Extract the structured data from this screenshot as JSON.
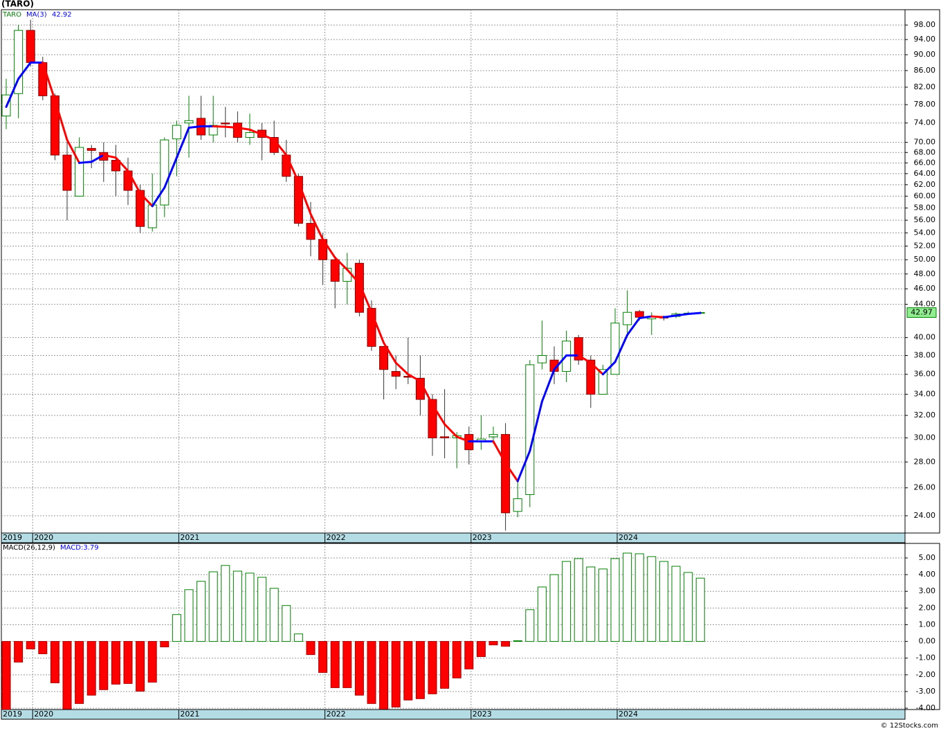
{
  "chart_data": [
    {
      "type": "candlestick",
      "title": "(TARO)",
      "name": "TARO",
      "log_scale": true,
      "grid": true,
      "categories": [
        "2019",
        null,
        "2020",
        null,
        null,
        null,
        null,
        null,
        null,
        null,
        null,
        null,
        null,
        null,
        "2021",
        null,
        null,
        null,
        null,
        null,
        null,
        null,
        null,
        null,
        null,
        null,
        "2022",
        null,
        null,
        null,
        null,
        null,
        null,
        null,
        null,
        null,
        null,
        null,
        "2023",
        null,
        null,
        null,
        null,
        null,
        null,
        null,
        null,
        null,
        null,
        null,
        "2024",
        null,
        null,
        null,
        null,
        null,
        null,
        null
      ],
      "open": [
        75.5,
        80.5,
        96.5,
        88,
        80,
        67.5,
        60,
        68.8,
        68,
        66.5,
        64.5,
        61,
        54.8,
        58.5,
        70.7,
        74,
        75,
        71.5,
        74,
        74,
        71,
        72.5,
        71,
        67.5,
        63.5,
        55.5,
        53,
        50,
        47,
        49.5,
        43.5,
        39,
        36.3,
        35.8,
        35.6,
        33.5,
        30.1,
        30,
        30.3,
        29.7,
        30.1,
        30.3,
        24.3,
        25.5,
        37.2,
        37.5,
        36.3,
        40,
        37.5,
        34,
        36,
        41.5,
        43.1,
        42.2,
        42.5,
        42.5,
        42.8,
        42.9
      ],
      "high": [
        84,
        98,
        99.5,
        89.5,
        80.5,
        70.5,
        71,
        69.5,
        70,
        69.5,
        67,
        62,
        64,
        71,
        74.5,
        80,
        80,
        80,
        77.5,
        76.5,
        76,
        74,
        74.5,
        70.5,
        64,
        59,
        54,
        50.5,
        51,
        50,
        44.5,
        39,
        38,
        40,
        38,
        34,
        34.5,
        30.5,
        31,
        32,
        31,
        31.3,
        26.5,
        37.5,
        42,
        39,
        40.8,
        40.3,
        38,
        37,
        43.5,
        45.8,
        43.3,
        43,
        42.6,
        43,
        43.1,
        43.1
      ],
      "low": [
        72.7,
        75,
        87,
        79,
        66.5,
        56,
        60,
        65,
        62.5,
        60,
        58.5,
        54,
        54.2,
        56.5,
        63.5,
        67,
        70.5,
        70,
        71,
        70,
        69.5,
        66.5,
        67.5,
        62.5,
        55,
        50.5,
        46.5,
        43.5,
        44,
        42.5,
        38.5,
        33.5,
        34.5,
        35,
        32,
        28.5,
        28.3,
        27.5,
        27.8,
        29,
        29.5,
        23,
        23.9,
        24.6,
        36.5,
        35,
        35.2,
        37,
        32.7,
        34,
        36,
        40.5,
        42,
        40.3,
        42,
        42.3,
        42.7,
        42.9
      ],
      "close": [
        80.2,
        96.5,
        88,
        80,
        67.5,
        61,
        69,
        68.4,
        66.5,
        64.5,
        61,
        55,
        58.5,
        70.5,
        73.5,
        74.5,
        71.5,
        73.5,
        73.8,
        71,
        72,
        71,
        68,
        63.5,
        55.5,
        53,
        50,
        47,
        48.8,
        43,
        39,
        36.5,
        35.8,
        35.7,
        33.5,
        30,
        30,
        30.2,
        29,
        29.9,
        30.3,
        24.2,
        25.2,
        37,
        38,
        36.3,
        39.6,
        37.5,
        34,
        36.5,
        41.7,
        43,
        42.4,
        42.5,
        42.3,
        42.8,
        42.9,
        42.97
      ],
      "up_color": "#008000",
      "down_color": "#ff0000",
      "series": [
        {
          "name": "MA(3)",
          "color": "#0000ff",
          "down_color": "#ff0000",
          "values": [
            77.5,
            84,
            88,
            88,
            79,
            70.5,
            66,
            66.2,
            67.5,
            67,
            64.5,
            60.5,
            58.3,
            61.5,
            67,
            73,
            73.3,
            73.3,
            73.2,
            73,
            72.6,
            71.6,
            70.5,
            67.5,
            62.5,
            57,
            53,
            50.3,
            48.6,
            46.7,
            43,
            39.4,
            37.2,
            36,
            35.3,
            33,
            31.2,
            30.1,
            29.7,
            29.7,
            29.7,
            27.9,
            26.5,
            28.9,
            33.3,
            36.5,
            38,
            38,
            37.2,
            36,
            37.3,
            40.3,
            42.3,
            42.5,
            42.4,
            42.6,
            42.8,
            42.92
          ]
        }
      ],
      "ylim": [
        22.84,
        102.4
      ],
      "yticks": [
        {
          "value": 24,
          "label": "24.00"
        },
        {
          "value": 26,
          "label": "26.00"
        },
        {
          "value": 28,
          "label": "28.00"
        },
        {
          "value": 30,
          "label": "30.00"
        },
        {
          "value": 32,
          "label": "32.00"
        },
        {
          "value": 34,
          "label": "34.00"
        },
        {
          "value": 36,
          "label": "36.00"
        },
        {
          "value": 38,
          "label": "38.00"
        },
        {
          "value": 40,
          "label": "40.00"
        },
        {
          "value": 44,
          "label": "44.00"
        },
        {
          "value": 46,
          "label": "46.00"
        },
        {
          "value": 48,
          "label": "48.00"
        },
        {
          "value": 50,
          "label": "50.00"
        },
        {
          "value": 52,
          "label": "52.00"
        },
        {
          "value": 54,
          "label": "54.00"
        },
        {
          "value": 56,
          "label": "56.00"
        },
        {
          "value": 58,
          "label": "58.00"
        },
        {
          "value": 60,
          "label": "60.00"
        },
        {
          "value": 62,
          "label": "62.00"
        },
        {
          "value": 64,
          "label": "64.00"
        },
        {
          "value": 66,
          "label": "66.00"
        },
        {
          "value": 68,
          "label": "68.00"
        },
        {
          "value": 70,
          "label": "70.00"
        },
        {
          "value": 74,
          "label": "74.00"
        },
        {
          "value": 78,
          "label": "78.00"
        },
        {
          "value": 82,
          "label": "82.00"
        },
        {
          "value": 86,
          "label": "86.00"
        },
        {
          "value": 90,
          "label": "90.00"
        },
        {
          "value": 94,
          "label": "94.00"
        },
        {
          "value": 98,
          "label": "98.00"
        }
      ]
    },
    {
      "type": "bar",
      "name": "MACD(26,12,9)",
      "macd_label": "MACD:3.79",
      "grid": true,
      "categories": [
        "2019",
        null,
        "2020",
        null,
        null,
        null,
        null,
        null,
        null,
        null,
        null,
        null,
        null,
        null,
        "2021",
        null,
        null,
        null,
        null,
        null,
        null,
        null,
        null,
        null,
        null,
        null,
        "2022",
        null,
        null,
        null,
        null,
        null,
        null,
        null,
        null,
        null,
        null,
        null,
        "2023",
        null,
        null,
        null,
        null,
        null,
        null,
        null,
        null,
        null,
        null,
        null,
        "2024",
        null,
        null,
        null,
        null,
        null,
        null,
        null
      ],
      "values": [
        -4.5,
        -1.24,
        -0.45,
        -0.74,
        -2.48,
        -4.05,
        -3.72,
        -3.22,
        -2.89,
        -2.56,
        -2.52,
        -2.98,
        -2.44,
        -0.33,
        1.61,
        3.1,
        3.6,
        4.17,
        4.55,
        4.21,
        4.09,
        3.84,
        3.18,
        2.15,
        0.45,
        -0.79,
        -1.86,
        -2.77,
        -2.77,
        -3.22,
        -3.72,
        -4.05,
        -3.93,
        -3.51,
        -3.43,
        -3.14,
        -2.81,
        -2.19,
        -1.65,
        -0.91,
        -0.21,
        -0.29,
        0.04,
        1.9,
        3.26,
        4.0,
        4.79,
        4.96,
        4.46,
        4.34,
        4.96,
        5.29,
        5.25,
        5.08,
        4.79,
        4.5,
        4.13,
        3.79
      ],
      "up_color": "#008000",
      "down_color": "#ff0000",
      "ylim": [
        -4.08,
        5.87
      ],
      "yticks": [
        {
          "value": -4,
          "label": "-4.00"
        },
        {
          "value": -3,
          "label": "-3.00"
        },
        {
          "value": -2,
          "label": "-2.00"
        },
        {
          "value": -1,
          "label": "-1.00"
        },
        {
          "value": 0,
          "label": "0.00"
        },
        {
          "value": 1,
          "label": "1.00"
        },
        {
          "value": 2,
          "label": "2.00"
        },
        {
          "value": 3,
          "label": "3.00"
        },
        {
          "value": 4,
          "label": "4.00"
        },
        {
          "value": 5,
          "label": "5.00"
        }
      ]
    }
  ],
  "footer": "© 12Stocks.com"
}
